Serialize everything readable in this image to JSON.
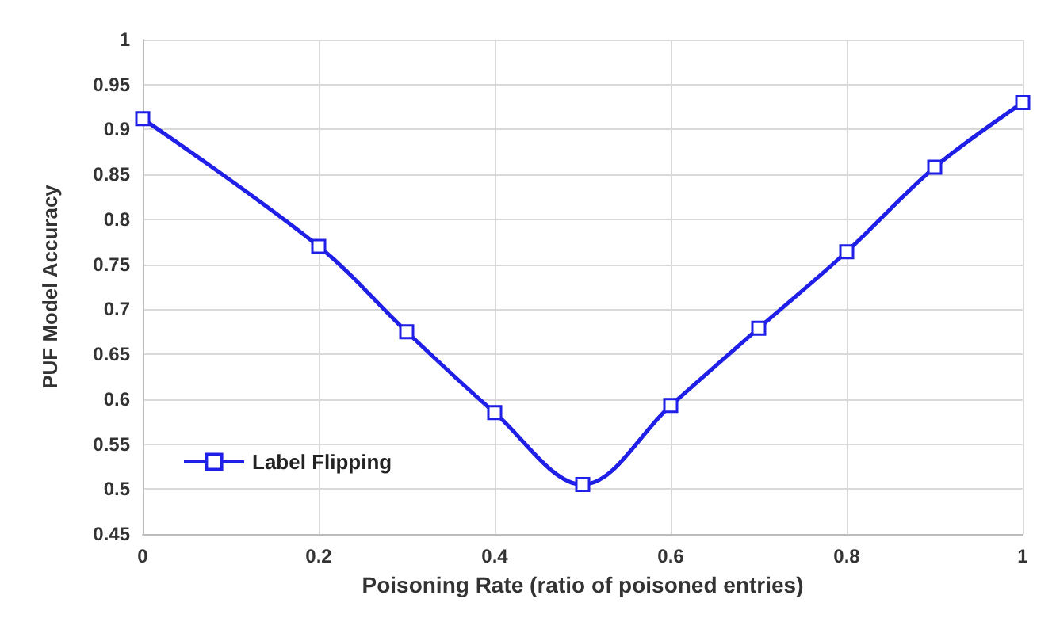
{
  "chart_data": {
    "type": "line",
    "xlabel": "Poisoning Rate (ratio of poisoned entries)",
    "ylabel": "PUF Model Accuracy",
    "x": [
      0,
      0.2,
      0.3,
      0.4,
      0.5,
      0.6,
      0.7,
      0.8,
      0.9,
      1
    ],
    "series": [
      {
        "name": "Label Flipping",
        "color": "#1f1fe8",
        "values": [
          0.912,
          0.77,
          0.675,
          0.585,
          0.505,
          0.593,
          0.679,
          0.764,
          0.858,
          0.93
        ]
      }
    ],
    "xlim": [
      0,
      1
    ],
    "xticks": [
      0,
      0.2,
      0.4,
      0.6,
      0.8,
      1
    ],
    "ylim": [
      0.45,
      1
    ],
    "yticks": [
      0.45,
      0.5,
      0.55,
      0.6,
      0.65,
      0.7,
      0.75,
      0.8,
      0.85,
      0.9,
      0.95,
      1
    ],
    "grid": true,
    "legend": "left",
    "marker": "square",
    "line_style": "solid"
  }
}
